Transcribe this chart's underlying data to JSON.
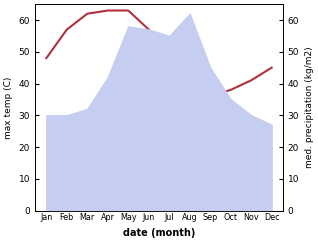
{
  "months": [
    "Jan",
    "Feb",
    "Mar",
    "Apr",
    "May",
    "Jun",
    "Jul",
    "Aug",
    "Sep",
    "Oct",
    "Nov",
    "Dec"
  ],
  "rainfall": [
    30,
    30,
    32,
    42,
    58,
    57,
    55,
    62,
    45,
    35,
    30,
    27
  ],
  "temperature": [
    48,
    57,
    62,
    63,
    63,
    57,
    46,
    37,
    36,
    38,
    41,
    45
  ],
  "fill_color": "#c5cdf0",
  "temp_color": "#b03040",
  "ylabel_left": "max temp (C)",
  "ylabel_right": "med. precipitation (kg/m2)",
  "xlabel": "date (month)",
  "ylim_left": [
    0,
    65
  ],
  "ylim_right": [
    0,
    65
  ],
  "yticks_left": [
    0,
    10,
    20,
    30,
    40,
    50,
    60
  ],
  "yticks_right": [
    0,
    10,
    20,
    30,
    40,
    50,
    60
  ],
  "fig_width": 3.18,
  "fig_height": 2.42,
  "dpi": 100
}
